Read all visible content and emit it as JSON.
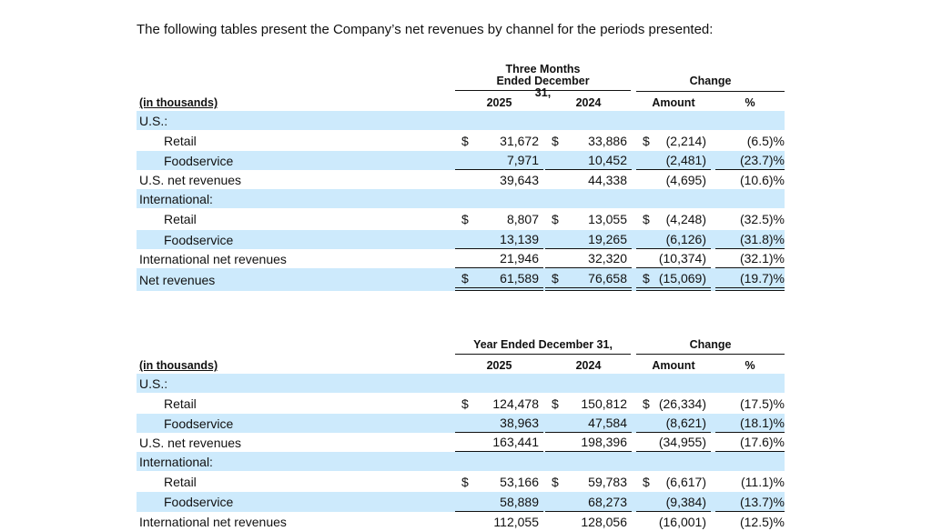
{
  "intro": "The following tables present the Company’s net revenues by channel for the periods presented:",
  "tables": [
    {
      "period": "Three Months Ended December 31,",
      "change": "Change",
      "unit": "(in thousands)",
      "cols": [
        "2025",
        "2024",
        "Amount",
        "%"
      ],
      "rows": [
        {
          "label": "U.S.:",
          "shaded": true
        },
        {
          "label": "Retail",
          "indent": true,
          "dollar": true,
          "values": [
            "31,672",
            "33,886",
            "(2,214)",
            "(6.5)%"
          ]
        },
        {
          "label": "Foodservice",
          "indent": true,
          "shaded": true,
          "rule": "single",
          "values": [
            "7,971",
            "10,452",
            "(2,481)",
            "(23.7)%"
          ]
        },
        {
          "label": "U.S. net revenues",
          "values": [
            "39,643",
            "44,338",
            "(4,695)",
            "(10.6)%"
          ]
        },
        {
          "label": "International:",
          "shaded": true
        },
        {
          "label": "Retail",
          "indent": true,
          "dollar": true,
          "values": [
            "8,807",
            "13,055",
            "(4,248)",
            "(32.5)%"
          ]
        },
        {
          "label": "Foodservice",
          "indent": true,
          "shaded": true,
          "rule": "single",
          "values": [
            "13,139",
            "19,265",
            "(6,126)",
            "(31.8)%"
          ]
        },
        {
          "label": "International net revenues",
          "rule": "single",
          "values": [
            "21,946",
            "32,320",
            "(10,374)",
            "(32.1)%"
          ]
        },
        {
          "label": "Net revenues",
          "shaded": true,
          "dollar": true,
          "rule": "double",
          "values": [
            "61,589",
            "76,658",
            "(15,069)",
            "(19.7)%"
          ]
        }
      ]
    },
    {
      "period": "Year Ended December 31,",
      "change": "Change",
      "unit": "(in thousands)",
      "cols": [
        "2025",
        "2024",
        "Amount",
        "%"
      ],
      "rows": [
        {
          "label": "U.S.:",
          "shaded": true
        },
        {
          "label": "Retail",
          "indent": true,
          "dollar": true,
          "values": [
            "124,478",
            "150,812",
            "(26,334)",
            "(17.5)%"
          ]
        },
        {
          "label": "Foodservice",
          "indent": true,
          "shaded": true,
          "rule": "single",
          "values": [
            "38,963",
            "47,584",
            "(8,621)",
            "(18.1)%"
          ]
        },
        {
          "label": "U.S. net revenues",
          "rule": "single",
          "values": [
            "163,441",
            "198,396",
            "(34,955)",
            "(17.6)%"
          ]
        },
        {
          "label": "International:",
          "shaded": true
        },
        {
          "label": "Retail",
          "indent": true,
          "dollar": true,
          "values": [
            "53,166",
            "59,783",
            "(6,617)",
            "(11.1)%"
          ]
        },
        {
          "label": "Foodservice",
          "indent": true,
          "shaded": true,
          "rule": "single",
          "values": [
            "58,889",
            "68,273",
            "(9,384)",
            "(13.7)%"
          ]
        },
        {
          "label": "International net revenues",
          "values": [
            "112,055",
            "128,056",
            "(16,001)",
            "(12.5)%"
          ]
        }
      ]
    }
  ]
}
